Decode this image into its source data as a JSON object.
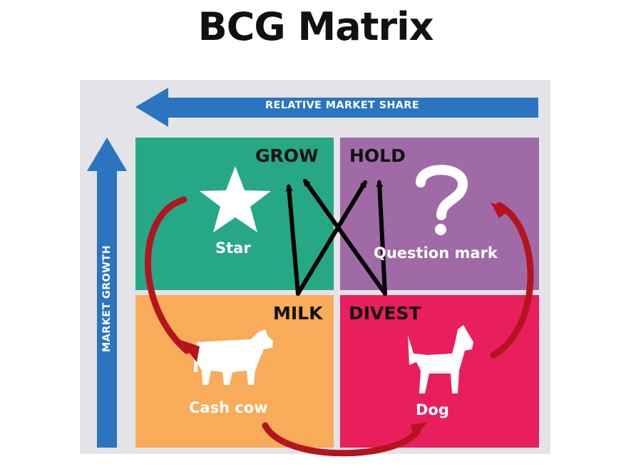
{
  "title": "BCG Matrix",
  "axes": {
    "horizontal": "RELATIVE MARKET SHARE",
    "vertical": "MARKET GROWTH"
  },
  "quadrants": {
    "star": {
      "label": "Star",
      "action": "GROW",
      "color": "#26a886",
      "icon": "star-icon"
    },
    "question_mark": {
      "label": "Question mark",
      "action": "HOLD",
      "color": "#a06aa6",
      "icon": "question-mark-icon"
    },
    "cash_cow": {
      "label": "Cash cow",
      "action": "MILK",
      "color": "#f8ab58",
      "icon": "cow-icon"
    },
    "dog": {
      "label": "Dog",
      "action": "DIVEST",
      "color": "#e81f5c",
      "icon": "dog-icon"
    }
  },
  "colors": {
    "axis_arrow": "#2a74c0",
    "cycle_arrow": "#b5141e",
    "action_arrow": "#000000",
    "panel_background": "#e4e3e8"
  }
}
